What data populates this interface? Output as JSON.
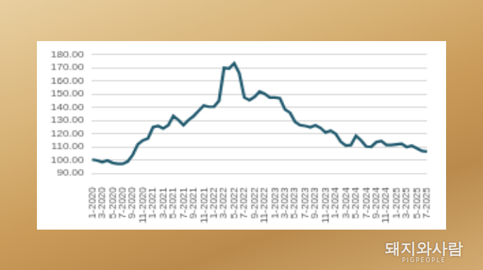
{
  "chart_data": {
    "type": "line",
    "categories": [
      "1-2020",
      null,
      "3-2020",
      null,
      "5-2020",
      null,
      "7-2020",
      null,
      "9-2020",
      null,
      "11-2020",
      null,
      "1-2021",
      null,
      "3-2021",
      null,
      "5-2021",
      null,
      "7-2021",
      null,
      "9-2021",
      null,
      "11-2021",
      null,
      "1-2022",
      null,
      "3-2022",
      null,
      "5-2022",
      null,
      "7-2022",
      null,
      "9-2022",
      null,
      "11-2022",
      null,
      "1-2023",
      null,
      "3-2023",
      null,
      "5-2023",
      null,
      "7-2023",
      null,
      "9-2023",
      null,
      "11-2023",
      null,
      "1-2024",
      null,
      "3-2024",
      null,
      "5-2024",
      null,
      "7-2024",
      null,
      "9-2024",
      null,
      "11-2024",
      null,
      "1-2025",
      null,
      "3-2025",
      null,
      "5-2025",
      null,
      "7-2025"
    ],
    "values": [
      100.5,
      99.8,
      98.5,
      99.7,
      98,
      97.3,
      97.2,
      99,
      104,
      112,
      115,
      116.5,
      125,
      126,
      124,
      126.5,
      133.5,
      130.5,
      126.5,
      130.5,
      133.5,
      137.5,
      141.5,
      140.5,
      140.5,
      145,
      170,
      169.5,
      173.5,
      166,
      147.5,
      145.5,
      148,
      152,
      150.3,
      147.5,
      147.5,
      147,
      138.5,
      136,
      129,
      126.5,
      126,
      125,
      126.5,
      124.5,
      121,
      122.5,
      120,
      114,
      111,
      111.5,
      118.5,
      115,
      110.5,
      110.2,
      113.7,
      114.5,
      111.5,
      111.5,
      112,
      112.5,
      110,
      111,
      109,
      107,
      106.5
    ],
    "color": "#215a6e",
    "ylim": [
      90,
      180
    ],
    "yticks": [
      {
        "value": 90,
        "label": "90.00"
      },
      {
        "value": 100,
        "label": "100.00"
      },
      {
        "value": 110,
        "label": "110.00"
      },
      {
        "value": 120,
        "label": "120.00"
      },
      {
        "value": 130,
        "label": "130.00"
      },
      {
        "value": 140,
        "label": "140.00"
      },
      {
        "value": 150,
        "label": "150.00"
      },
      {
        "value": 160,
        "label": "160.00"
      },
      {
        "value": 170,
        "label": "170.00"
      },
      {
        "value": 180,
        "label": "180.00"
      }
    ],
    "grid": true,
    "annotations": [
      "돼지와사람",
      "PIGPEOPLE"
    ]
  }
}
